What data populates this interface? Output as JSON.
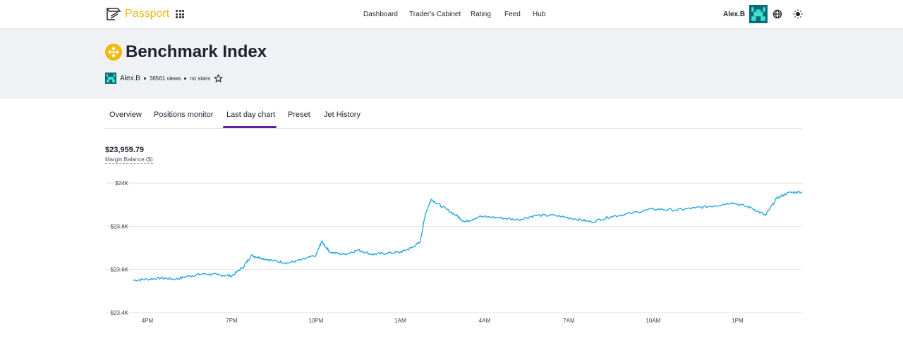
{
  "header": {
    "brand": "Passport",
    "nav": [
      "Dashboard",
      "Trader's Cabinet",
      "Rating",
      "Feed",
      "Hub"
    ],
    "user_name": "Alex.B",
    "icons": [
      "apps-grid-icon",
      "globe-icon",
      "sun-icon"
    ]
  },
  "hero": {
    "title": "Benchmark Index",
    "author": "Alex.B",
    "views": "36561 views",
    "stars": "no stars",
    "icons": [
      "binance-coin-icon",
      "star-icon"
    ]
  },
  "tabs": [
    "Overview",
    "Positions monitor",
    "Last day chart",
    "Preset",
    "Jet History"
  ],
  "active_tab": "Last day chart",
  "balance": {
    "value": "$23,959.79",
    "label": "Margin Balance ($)"
  },
  "colors": {
    "accent": "#5b1f9a",
    "brand": "#f0b90b",
    "line": "#29a8e0",
    "hero_bg": "#f0f1f4"
  },
  "chart_data": {
    "type": "line",
    "x_ticks": [
      "4PM",
      "7PM",
      "10PM",
      "1AM",
      "4AM",
      "7AM",
      "10AM",
      "1PM"
    ],
    "y_ticks": [
      "$24K",
      "$23.8K",
      "$23.6K",
      "$23.4K"
    ],
    "ylim": [
      23400,
      24000
    ],
    "xlim_hours": [
      15.5,
      39.3
    ],
    "grid": true,
    "series": [
      {
        "values": [
          [
            15.5,
            23550
          ],
          [
            16.0,
            23555
          ],
          [
            16.5,
            23560
          ],
          [
            17.0,
            23555
          ],
          [
            17.5,
            23570
          ],
          [
            18.0,
            23580
          ],
          [
            18.5,
            23575
          ],
          [
            19.0,
            23570
          ],
          [
            19.4,
            23610
          ],
          [
            19.7,
            23665
          ],
          [
            20.0,
            23655
          ],
          [
            20.5,
            23640
          ],
          [
            21.0,
            23630
          ],
          [
            21.5,
            23645
          ],
          [
            22.0,
            23665
          ],
          [
            22.2,
            23730
          ],
          [
            22.5,
            23680
          ],
          [
            23.0,
            23670
          ],
          [
            23.5,
            23690
          ],
          [
            24.0,
            23670
          ],
          [
            24.5,
            23675
          ],
          [
            25.0,
            23680
          ],
          [
            25.4,
            23700
          ],
          [
            25.7,
            23725
          ],
          [
            25.9,
            23860
          ],
          [
            26.1,
            23925
          ],
          [
            26.5,
            23890
          ],
          [
            27.0,
            23850
          ],
          [
            27.3,
            23820
          ],
          [
            27.8,
            23845
          ],
          [
            28.5,
            23840
          ],
          [
            29.2,
            23830
          ],
          [
            29.8,
            23850
          ],
          [
            30.5,
            23850
          ],
          [
            31.2,
            23835
          ],
          [
            31.8,
            23820
          ],
          [
            32.5,
            23845
          ],
          [
            33.2,
            23860
          ],
          [
            34.0,
            23880
          ],
          [
            34.8,
            23875
          ],
          [
            35.5,
            23885
          ],
          [
            36.2,
            23895
          ],
          [
            36.8,
            23910
          ],
          [
            37.5,
            23885
          ],
          [
            38.0,
            23850
          ],
          [
            38.4,
            23930
          ],
          [
            38.8,
            23955
          ],
          [
            39.3,
            23960
          ]
        ]
      }
    ]
  }
}
